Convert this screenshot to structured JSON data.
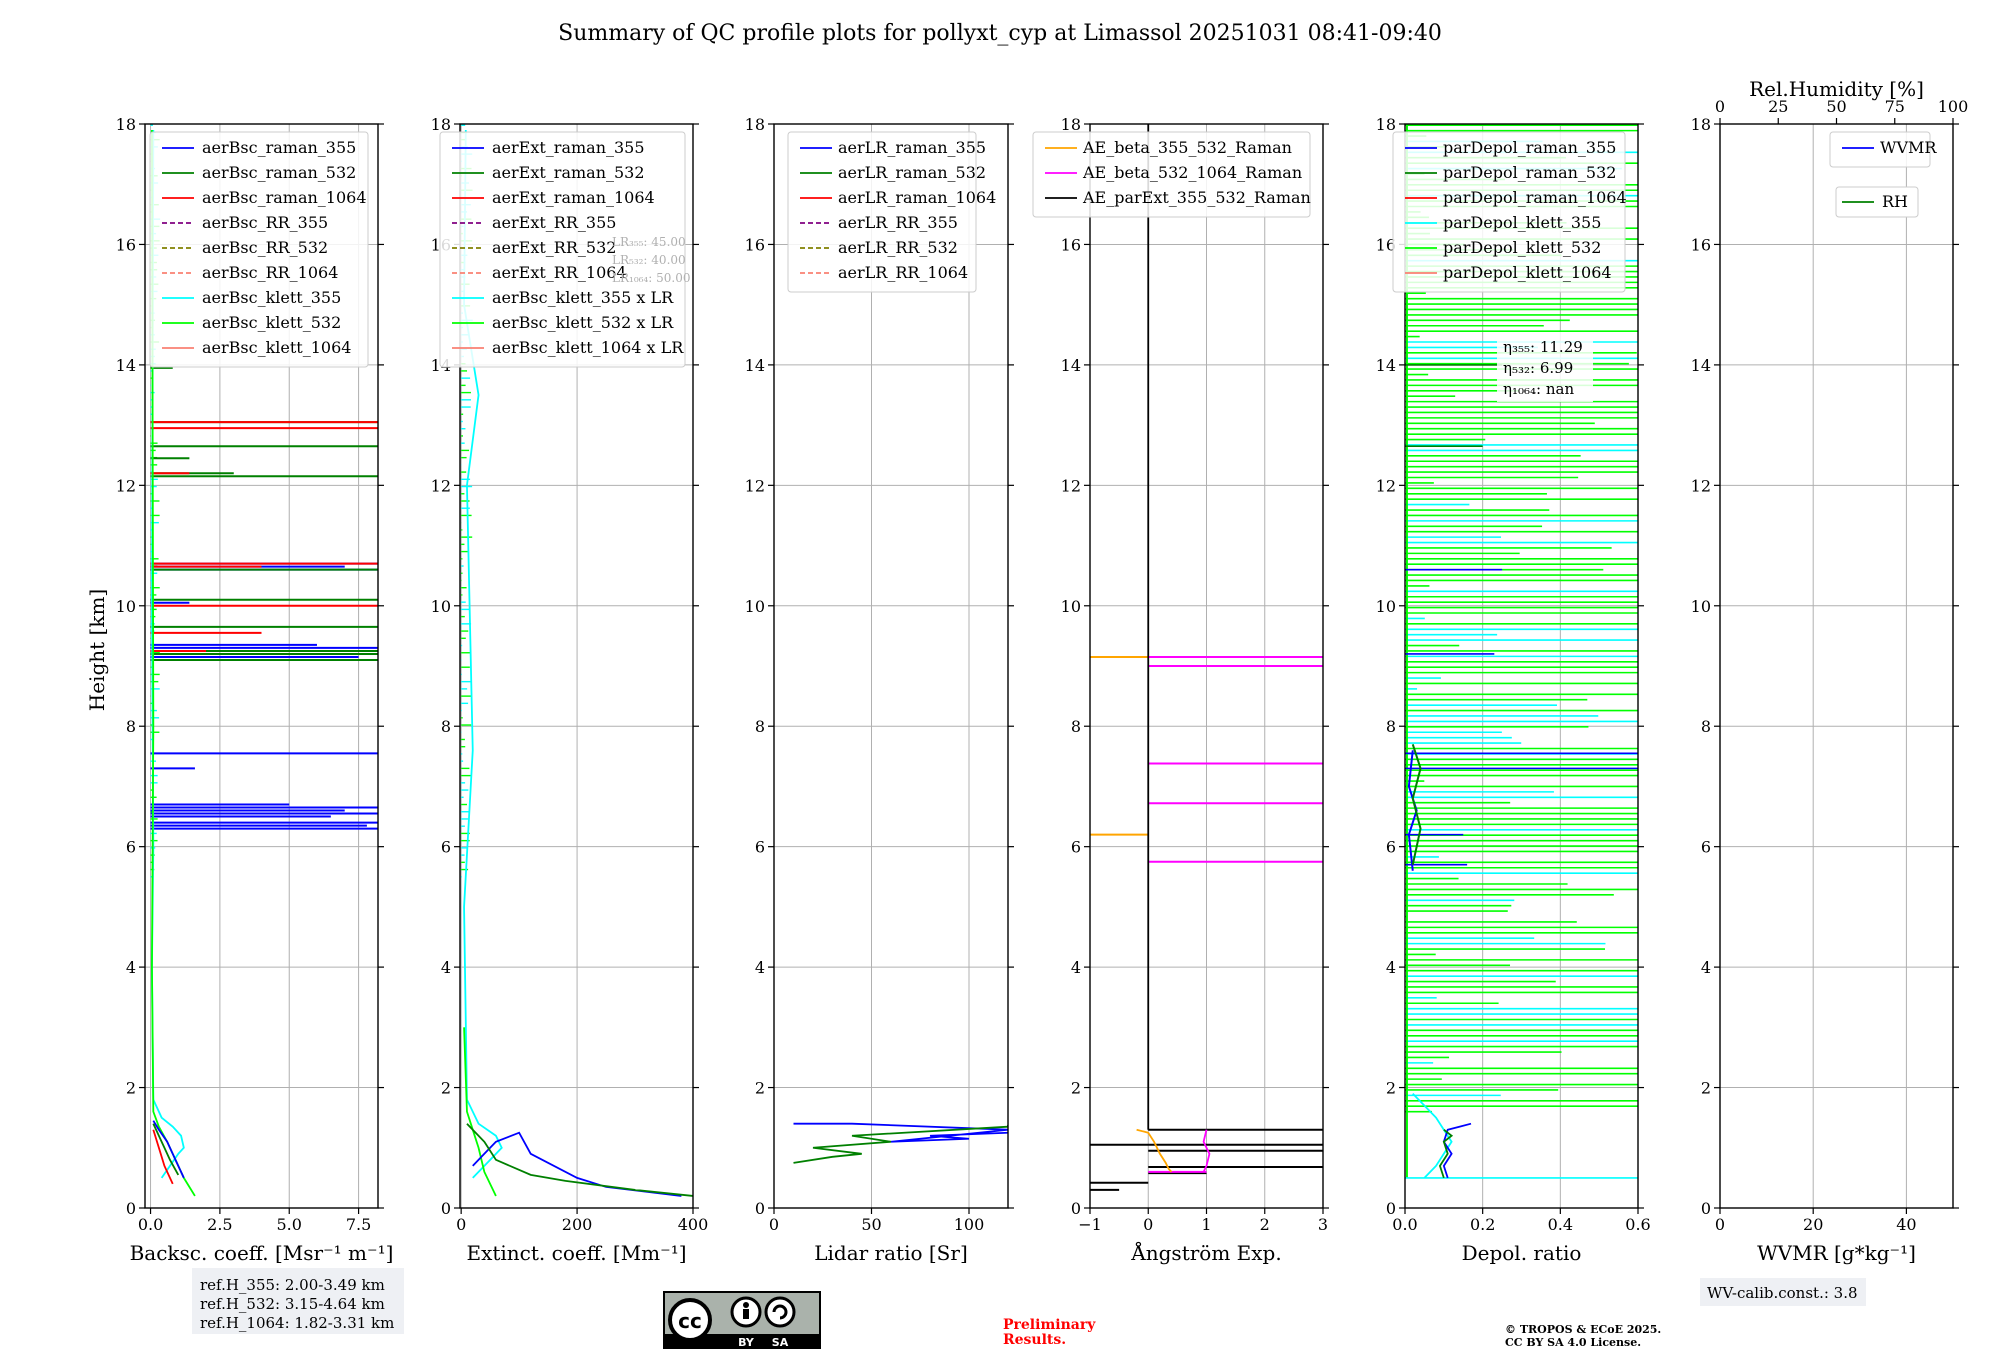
{
  "figure": {
    "title": "Summary of QC profile plots for pollyxt_cyp at Limassol 20251031 08:41-09:40",
    "ylabel": "Height [km]",
    "ref_heights": [
      "ref.H_355: 2.00-3.49 km",
      "ref.H_532: 3.15-4.64 km",
      "ref.H_1064: 1.82-3.31 km"
    ],
    "license_badge": {
      "cc": "cc",
      "by": "BY",
      "sa": "SA"
    },
    "preliminary": [
      "Preliminary",
      "Results."
    ],
    "copyright": [
      "© TROPOS & ECoE 2025.",
      "CC BY SA 4.0 License."
    ],
    "wv_calib": "WV-calib.const.: 3.8",
    "colors": {
      "blue": "#0000ff",
      "green": "#008000",
      "red": "#ff0000",
      "purple": "#800080",
      "olive": "#808000",
      "salmon": "#fa8072",
      "cyan": "#00ffff",
      "lime": "#00ff00",
      "orange": "#ffa500",
      "magenta": "#ff00ff",
      "black": "#000000"
    }
  },
  "chart_data": [
    {
      "id": "bsc",
      "type": "line",
      "xlabel": "Backsc. coeff. [Msr⁻¹ m⁻¹]",
      "ylabel": "Height [km]",
      "xlim": [
        -0.2,
        8.2
      ],
      "ylim": [
        0,
        18
      ],
      "xticks": [
        0.0,
        2.5,
        5.0,
        7.5
      ],
      "xtick_labels": [
        "0.0",
        "2.5",
        "5.0",
        "7.5"
      ],
      "yticks": [
        0,
        2,
        4,
        6,
        8,
        10,
        12,
        14,
        16,
        18
      ],
      "legend": [
        {
          "label": "aerBsc_raman_355",
          "color": "blue",
          "dash": false
        },
        {
          "label": "aerBsc_raman_532",
          "color": "green",
          "dash": false
        },
        {
          "label": "aerBsc_raman_1064",
          "color": "red",
          "dash": false
        },
        {
          "label": "aerBsc_RR_355",
          "color": "purple",
          "dash": true
        },
        {
          "label": "aerBsc_RR_532",
          "color": "olive",
          "dash": true
        },
        {
          "label": "aerBsc_RR_1064",
          "color": "salmon",
          "dash": true
        },
        {
          "label": "aerBsc_klett_355",
          "color": "cyan",
          "dash": false
        },
        {
          "label": "aerBsc_klett_532",
          "color": "lime",
          "dash": false
        },
        {
          "label": "aerBsc_klett_1064",
          "color": "salmon",
          "dash": false
        }
      ],
      "series": [
        {
          "name": "aerBsc_klett_355",
          "color": "cyan",
          "x": [
            0.4,
            0.7,
            1.0,
            1.2,
            1.1,
            0.8,
            0.4,
            0.1,
            0.05,
            0.1,
            0.05,
            0.1
          ],
          "y": [
            0.5,
            0.7,
            0.9,
            1.0,
            1.2,
            1.35,
            1.5,
            1.8,
            4,
            6,
            10,
            17.9
          ]
        },
        {
          "name": "aerBsc_klett_532",
          "color": "lime",
          "x": [
            1.6,
            1.2,
            0.9,
            0.6,
            0.3,
            0.1,
            0.05,
            0.1,
            0.05
          ],
          "y": [
            0.2,
            0.5,
            0.8,
            1.1,
            1.35,
            1.6,
            4,
            8,
            17.9
          ]
        },
        {
          "name": "aerBsc_raman_355",
          "color": "blue",
          "x": [
            1.2,
            0.9,
            0.6,
            0.3,
            0.1
          ],
          "y": [
            0.5,
            0.8,
            1.1,
            1.3,
            1.45
          ]
        },
        {
          "name": "aerBsc_raman_532",
          "color": "green",
          "x": [
            1.0,
            0.7,
            0.5,
            0.25,
            0.1
          ],
          "y": [
            0.55,
            0.8,
            1.0,
            1.25,
            1.4
          ]
        },
        {
          "name": "aerBsc_raman_1064",
          "color": "red",
          "x": [
            0.8,
            0.5,
            0.3,
            0.1
          ],
          "y": [
            0.4,
            0.7,
            1.0,
            1.3
          ]
        }
      ],
      "spikes": [
        {
          "color": "blue",
          "y": [
            6.3,
            6.35,
            6.4,
            6.5,
            6.55,
            6.6,
            6.65,
            6.7,
            7.3,
            7.55,
            9.1,
            9.15,
            9.2,
            9.25,
            9.3,
            9.35,
            10.05,
            10.6,
            10.65,
            10.7
          ],
          "x": [
            8.2,
            7.8,
            8.2,
            6.5,
            8.2,
            7.0,
            8.2,
            5.0,
            1.6,
            8.2,
            8.2,
            7.5,
            8.2,
            4.0,
            8.2,
            6.0,
            1.4,
            8.2,
            7.0,
            8.2
          ]
        },
        {
          "color": "green",
          "y": [
            9.1,
            9.2,
            9.25,
            9.65,
            10.1,
            10.6,
            12.15,
            12.2,
            12.45,
            12.65,
            13.05,
            13.95
          ],
          "x": [
            8.2,
            8.2,
            8.2,
            8.2,
            8.2,
            8.2,
            8.2,
            3.0,
            1.4,
            8.2,
            8.2,
            0.8
          ]
        },
        {
          "color": "red",
          "y": [
            9.25,
            9.55,
            10.0,
            10.65,
            10.7,
            12.2,
            12.95,
            13.05
          ],
          "x": [
            2.0,
            4.0,
            8.2,
            4.0,
            8.2,
            1.4,
            8.2,
            8.2
          ]
        }
      ]
    },
    {
      "id": "ext",
      "type": "line",
      "xlabel": "Extinct. coeff. [Mm⁻¹]",
      "xlim": [
        -2,
        400
      ],
      "ylim": [
        0,
        18
      ],
      "xticks": [
        0,
        200,
        400
      ],
      "xtick_labels": [
        "0",
        "200",
        "400"
      ],
      "yticks": [
        0,
        2,
        4,
        6,
        8,
        10,
        12,
        14,
        16,
        18
      ],
      "legend": [
        {
          "label": "aerExt_raman_355",
          "color": "blue",
          "dash": false
        },
        {
          "label": "aerExt_raman_532",
          "color": "green",
          "dash": false
        },
        {
          "label": "aerExt_raman_1064",
          "color": "red",
          "dash": false
        },
        {
          "label": "aerExt_RR_355",
          "color": "purple",
          "dash": true
        },
        {
          "label": "aerExt_RR_532",
          "color": "olive",
          "dash": true
        },
        {
          "label": "aerExt_RR_1064",
          "color": "salmon",
          "dash": true
        },
        {
          "label": "aerBsc_klett_355 x LR",
          "color": "cyan",
          "dash": false
        },
        {
          "label": "aerBsc_klett_532 x LR",
          "color": "lime",
          "dash": false
        },
        {
          "label": "aerBsc_klett_1064 x LR",
          "color": "salmon",
          "dash": false
        }
      ],
      "lr_text": [
        "LR₃₅₅: 45.00",
        "LR₅₃₂: 40.00",
        "LR₁₀₆₄: 50.00"
      ],
      "series": [
        {
          "name": "aerBsc_klett_355 x LR",
          "color": "cyan",
          "x": [
            20,
            50,
            70,
            60,
            30,
            10,
            5,
            20,
            10,
            30,
            5,
            8
          ],
          "y": [
            0.5,
            0.8,
            1.0,
            1.2,
            1.4,
            1.8,
            5,
            7.6,
            12,
            13.5,
            15,
            17.9
          ]
        },
        {
          "name": "aerBsc_klett_532 x LR",
          "color": "lime",
          "x": [
            60,
            40,
            30,
            20,
            10,
            5
          ],
          "y": [
            0.2,
            0.6,
            1.0,
            1.3,
            1.6,
            3
          ]
        },
        {
          "name": "aerExt_raman_355",
          "color": "blue",
          "x": [
            380,
            250,
            200,
            120,
            100,
            60,
            40,
            20
          ],
          "y": [
            0.2,
            0.35,
            0.5,
            0.9,
            1.25,
            1.1,
            0.9,
            0.7
          ]
        },
        {
          "name": "aerExt_raman_532",
          "color": "green",
          "x": [
            400,
            300,
            180,
            120,
            60,
            40,
            20,
            10
          ],
          "y": [
            0.2,
            0.3,
            0.45,
            0.55,
            0.8,
            1.1,
            1.3,
            1.4
          ]
        }
      ],
      "spikes": []
    },
    {
      "id": "lr",
      "type": "line",
      "xlabel": "Lidar ratio [Sr]",
      "xlim": [
        0,
        120
      ],
      "ylim": [
        0,
        18
      ],
      "xticks": [
        0,
        50,
        100
      ],
      "xtick_labels": [
        "0",
        "50",
        "100"
      ],
      "yticks": [
        0,
        2,
        4,
        6,
        8,
        10,
        12,
        14,
        16,
        18
      ],
      "legend": [
        {
          "label": "aerLR_raman_355",
          "color": "blue",
          "dash": false
        },
        {
          "label": "aerLR_raman_532",
          "color": "green",
          "dash": false
        },
        {
          "label": "aerLR_raman_1064",
          "color": "red",
          "dash": false
        },
        {
          "label": "aerLR_RR_355",
          "color": "purple",
          "dash": true
        },
        {
          "label": "aerLR_RR_532",
          "color": "olive",
          "dash": true
        },
        {
          "label": "aerLR_RR_1064",
          "color": "salmon",
          "dash": true
        }
      ],
      "series": [
        {
          "name": "aerLR_raman_355",
          "color": "blue",
          "x": [
            120,
            80,
            100,
            60,
            120,
            40,
            10
          ],
          "y": [
            1.25,
            1.2,
            1.15,
            1.1,
            1.3,
            1.4,
            1.4
          ]
        },
        {
          "name": "aerLR_raman_532",
          "color": "green",
          "x": [
            10,
            30,
            45,
            20,
            60,
            40,
            120,
            120
          ],
          "y": [
            0.75,
            0.85,
            0.9,
            1.0,
            1.1,
            1.2,
            1.35,
            1.38
          ]
        }
      ],
      "spikes": []
    },
    {
      "id": "ae",
      "type": "line",
      "xlabel": "Ångström Exp.",
      "xlim": [
        -1,
        3
      ],
      "ylim": [
        0,
        18
      ],
      "xticks": [
        -1,
        0,
        1,
        2,
        3
      ],
      "xtick_labels": [
        "−1",
        "0",
        "1",
        "2",
        "3"
      ],
      "yticks": [
        0,
        2,
        4,
        6,
        8,
        10,
        12,
        14,
        16,
        18
      ],
      "legend": [
        {
          "label": "AE_beta_355_532_Raman",
          "color": "orange",
          "dash": false
        },
        {
          "label": "AE_beta_532_1064_Raman",
          "color": "magenta",
          "dash": false
        },
        {
          "label": "AE_parExt_355_532_Raman",
          "color": "black",
          "dash": false
        }
      ],
      "series": [
        {
          "name": "AE_parExt_355_532_Raman",
          "color": "black",
          "x": [
            0,
            0
          ],
          "y": [
            1.3,
            18
          ]
        },
        {
          "name": "AE_beta_355_532_Raman",
          "color": "orange",
          "x": [
            -0.2,
            0.0,
            0.1,
            0.2,
            0.3,
            0.35,
            0.4
          ],
          "y": [
            1.3,
            1.25,
            1.1,
            0.9,
            0.75,
            0.65,
            0.6
          ]
        },
        {
          "name": "AE_beta_532_1064_Raman",
          "color": "magenta",
          "x": [
            1.0,
            0.95,
            1.05,
            1.0,
            0.95
          ],
          "y": [
            1.3,
            1.1,
            0.9,
            0.7,
            0.6
          ]
        }
      ],
      "spikes": [
        {
          "color": "black",
          "y": [
            1.3,
            1.05,
            0.95,
            0.68,
            0.58,
            0.42,
            0.3
          ],
          "x": [
            3,
            3,
            3,
            3,
            1,
            -1,
            -1
          ],
          "x0": [
            0,
            -1,
            0,
            0,
            0,
            0,
            -0.5
          ]
        },
        {
          "color": "orange",
          "y": [
            9.15,
            6.2
          ],
          "x": [
            -1,
            -1
          ],
          "x0": [
            0,
            0
          ]
        },
        {
          "color": "magenta",
          "y": [
            9.15,
            9.0,
            7.38,
            6.72,
            5.75,
            0.6
          ],
          "x": [
            3,
            3,
            3,
            3,
            3,
            0
          ],
          "x0": [
            0,
            0,
            0,
            0,
            0,
            1
          ]
        }
      ]
    },
    {
      "id": "depol",
      "type": "line",
      "xlabel": "Depol. ratio",
      "xlim": [
        0,
        0.6
      ],
      "ylim": [
        0,
        18
      ],
      "xticks": [
        0,
        0.2,
        0.4,
        0.6
      ],
      "xtick_labels": [
        "0.0",
        "0.2",
        "0.4",
        "0.6"
      ],
      "yticks": [
        0,
        2,
        4,
        6,
        8,
        10,
        12,
        14,
        16,
        18
      ],
      "legend": [
        {
          "label": "parDepol_raman_355",
          "color": "blue",
          "dash": false
        },
        {
          "label": "parDepol_raman_532",
          "color": "green",
          "dash": false
        },
        {
          "label": "parDepol_raman_1064",
          "color": "red",
          "dash": false
        },
        {
          "label": "parDepol_klett_355",
          "color": "cyan",
          "dash": false
        },
        {
          "label": "parDepol_klett_532",
          "color": "lime",
          "dash": false
        },
        {
          "label": "parDepol_klett_1064",
          "color": "salmon",
          "dash": false
        }
      ],
      "eta_text": [
        "η₃₅₅: 11.29",
        "η₅₃₂: 6.99",
        "η₁₀₆₄: nan"
      ],
      "series": [
        {
          "name": "parDepol_klett_355",
          "color": "cyan",
          "x": [
            0.05,
            0.08,
            0.1,
            0.12,
            0.1,
            0.08,
            0.05,
            0.02
          ],
          "y": [
            0.5,
            0.7,
            0.9,
            1.1,
            1.3,
            1.5,
            1.7,
            1.9
          ]
        },
        {
          "name": "parDepol_raman_355",
          "color": "blue",
          "x": [
            0.11,
            0.1,
            0.12,
            0.1,
            0.11,
            0.14,
            0.17
          ],
          "y": [
            0.5,
            0.7,
            0.9,
            1.1,
            1.3,
            1.35,
            1.4
          ]
        },
        {
          "name": "parDepol_raman_532",
          "color": "green",
          "x": [
            0.1,
            0.09,
            0.11,
            0.1,
            0.12,
            0.1
          ],
          "y": [
            0.5,
            0.7,
            0.9,
            1.1,
            1.2,
            1.3
          ]
        }
      ],
      "spikes": []
    },
    {
      "id": "wv",
      "type": "line",
      "xlabel": "WVMR [g*kg⁻¹]",
      "top_xlabel": "Rel.Humidity [%]",
      "xlim": [
        0,
        50
      ],
      "ylim": [
        0,
        18
      ],
      "xticks": [
        0,
        20,
        40
      ],
      "xtick_labels": [
        "0",
        "20",
        "40"
      ],
      "top_xticks": [
        0,
        25,
        50,
        75,
        100
      ],
      "top_xtick_labels": [
        "0",
        "25",
        "50",
        "75",
        "100"
      ],
      "yticks": [
        0,
        2,
        4,
        6,
        8,
        10,
        12,
        14,
        16,
        18
      ],
      "legend": [
        {
          "label": "WVMR",
          "color": "blue",
          "dash": false
        }
      ],
      "legend2": [
        {
          "label": "RH",
          "color": "green",
          "dash": false
        }
      ],
      "series": [],
      "spikes": []
    }
  ]
}
